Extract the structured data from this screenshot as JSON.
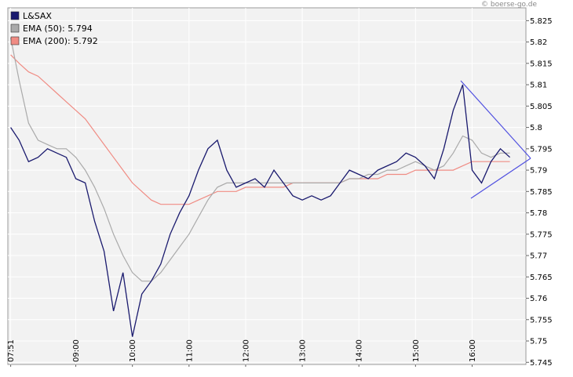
{
  "chart_data": {
    "type": "line",
    "watermark": "© boerse-go.de",
    "x": [
      "07:51",
      "08:00",
      "08:10",
      "08:20",
      "08:30",
      "08:40",
      "08:50",
      "09:00",
      "09:10",
      "09:20",
      "09:30",
      "09:40",
      "09:50",
      "10:00",
      "10:10",
      "10:20",
      "10:30",
      "10:40",
      "10:50",
      "11:00",
      "11:10",
      "11:20",
      "11:30",
      "11:40",
      "11:50",
      "12:00",
      "12:10",
      "12:20",
      "12:30",
      "12:40",
      "12:50",
      "13:00",
      "13:10",
      "13:20",
      "13:30",
      "13:40",
      "13:50",
      "14:00",
      "14:10",
      "14:20",
      "14:30",
      "14:40",
      "14:50",
      "15:00",
      "15:10",
      "15:20",
      "15:30",
      "15:40",
      "15:50",
      "16:00",
      "16:10",
      "16:20",
      "16:30",
      "16:40"
    ],
    "series": [
      {
        "name": "L&SAX",
        "color": "#1a1a6e",
        "values": [
          5.8,
          5.797,
          5.792,
          5.793,
          5.795,
          5.794,
          5.793,
          5.788,
          5.787,
          5.778,
          5.771,
          5.757,
          5.766,
          5.751,
          5.761,
          5.764,
          5.768,
          5.775,
          5.78,
          5.784,
          5.79,
          5.795,
          5.797,
          5.79,
          5.786,
          5.787,
          5.788,
          5.786,
          5.79,
          5.787,
          5.784,
          5.783,
          5.784,
          5.783,
          5.784,
          5.787,
          5.79,
          5.789,
          5.788,
          5.79,
          5.791,
          5.792,
          5.794,
          5.793,
          5.791,
          5.788,
          5.795,
          5.804,
          5.81,
          5.79,
          5.787,
          5.792,
          5.795,
          5.793
        ]
      },
      {
        "name": "EMA (50): 5.794",
        "color": "#aaaaaa",
        "values": [
          5.821,
          5.811,
          5.801,
          5.797,
          5.796,
          5.795,
          5.795,
          5.793,
          5.79,
          5.786,
          5.781,
          5.775,
          5.77,
          5.766,
          5.764,
          5.764,
          5.766,
          5.769,
          5.772,
          5.775,
          5.779,
          5.783,
          5.786,
          5.787,
          5.787,
          5.787,
          5.787,
          5.787,
          5.787,
          5.787,
          5.787,
          5.787,
          5.787,
          5.787,
          5.787,
          5.787,
          5.788,
          5.788,
          5.789,
          5.789,
          5.79,
          5.79,
          5.791,
          5.792,
          5.791,
          5.79,
          5.791,
          5.794,
          5.798,
          5.797,
          5.794,
          5.793,
          5.794,
          5.794
        ]
      },
      {
        "name": "EMA (200): 5.792",
        "color": "#f08c84",
        "values": [
          5.817,
          5.815,
          5.813,
          5.812,
          5.81,
          5.808,
          5.806,
          5.804,
          5.802,
          5.799,
          5.796,
          5.793,
          5.79,
          5.787,
          5.785,
          5.783,
          5.782,
          5.782,
          5.782,
          5.782,
          5.783,
          5.784,
          5.785,
          5.785,
          5.785,
          5.786,
          5.786,
          5.786,
          5.786,
          5.786,
          5.787,
          5.787,
          5.787,
          5.787,
          5.787,
          5.787,
          5.788,
          5.788,
          5.788,
          5.788,
          5.789,
          5.789,
          5.789,
          5.79,
          5.79,
          5.79,
          5.79,
          5.79,
          5.791,
          5.792,
          5.792,
          5.792,
          5.792,
          5.792
        ]
      }
    ],
    "xlim": [
      "07:48",
      "16:57"
    ],
    "xticks": [
      "07:51",
      "09:00",
      "10:00",
      "11:00",
      "12:00",
      "13:00",
      "14:00",
      "15:00",
      "16:00"
    ],
    "ylim": [
      5.7445,
      5.828
    ],
    "yticks": [
      5.745,
      5.75,
      5.755,
      5.76,
      5.765,
      5.77,
      5.775,
      5.78,
      5.785,
      5.79,
      5.795,
      5.8,
      5.805,
      5.81,
      5.815,
      5.82,
      5.825
    ],
    "grid": true
  }
}
